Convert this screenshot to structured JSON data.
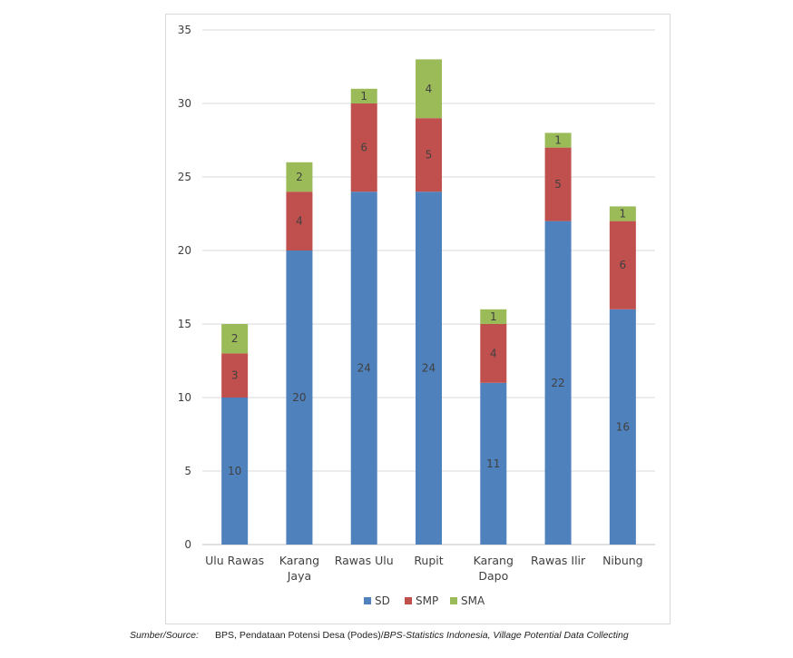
{
  "chart_data": {
    "type": "bar",
    "stacked": true,
    "categories": [
      [
        "Ulu Rawas"
      ],
      [
        "Karang",
        "Jaya"
      ],
      [
        "Rawas Ulu"
      ],
      [
        "Rupit"
      ],
      [
        "Karang",
        "Dapo"
      ],
      [
        "Rawas Ilir"
      ],
      [
        "Nibung"
      ]
    ],
    "series": [
      {
        "name": "SD",
        "color": "#4f81bd",
        "values": [
          10,
          20,
          24,
          24,
          11,
          22,
          16
        ]
      },
      {
        "name": "SMP",
        "color": "#c0504d",
        "values": [
          3,
          4,
          6,
          5,
          4,
          5,
          6
        ]
      },
      {
        "name": "SMA",
        "color": "#9bbb59",
        "values": [
          2,
          2,
          1,
          4,
          1,
          1,
          1
        ]
      }
    ],
    "ylim": [
      0,
      35
    ],
    "yticks": [
      0,
      5,
      10,
      15,
      20,
      25,
      30,
      35
    ],
    "grid": true,
    "legend": "bottom"
  },
  "source": {
    "label_main": "Sumber/",
    "label_italic": "Source",
    "label_colon": ":",
    "text_main": "BPS, Pendataan Potensi Desa (Podes)/",
    "text_italic": "BPS-Statistics Indonesia, Village Potential Data Collecting"
  }
}
